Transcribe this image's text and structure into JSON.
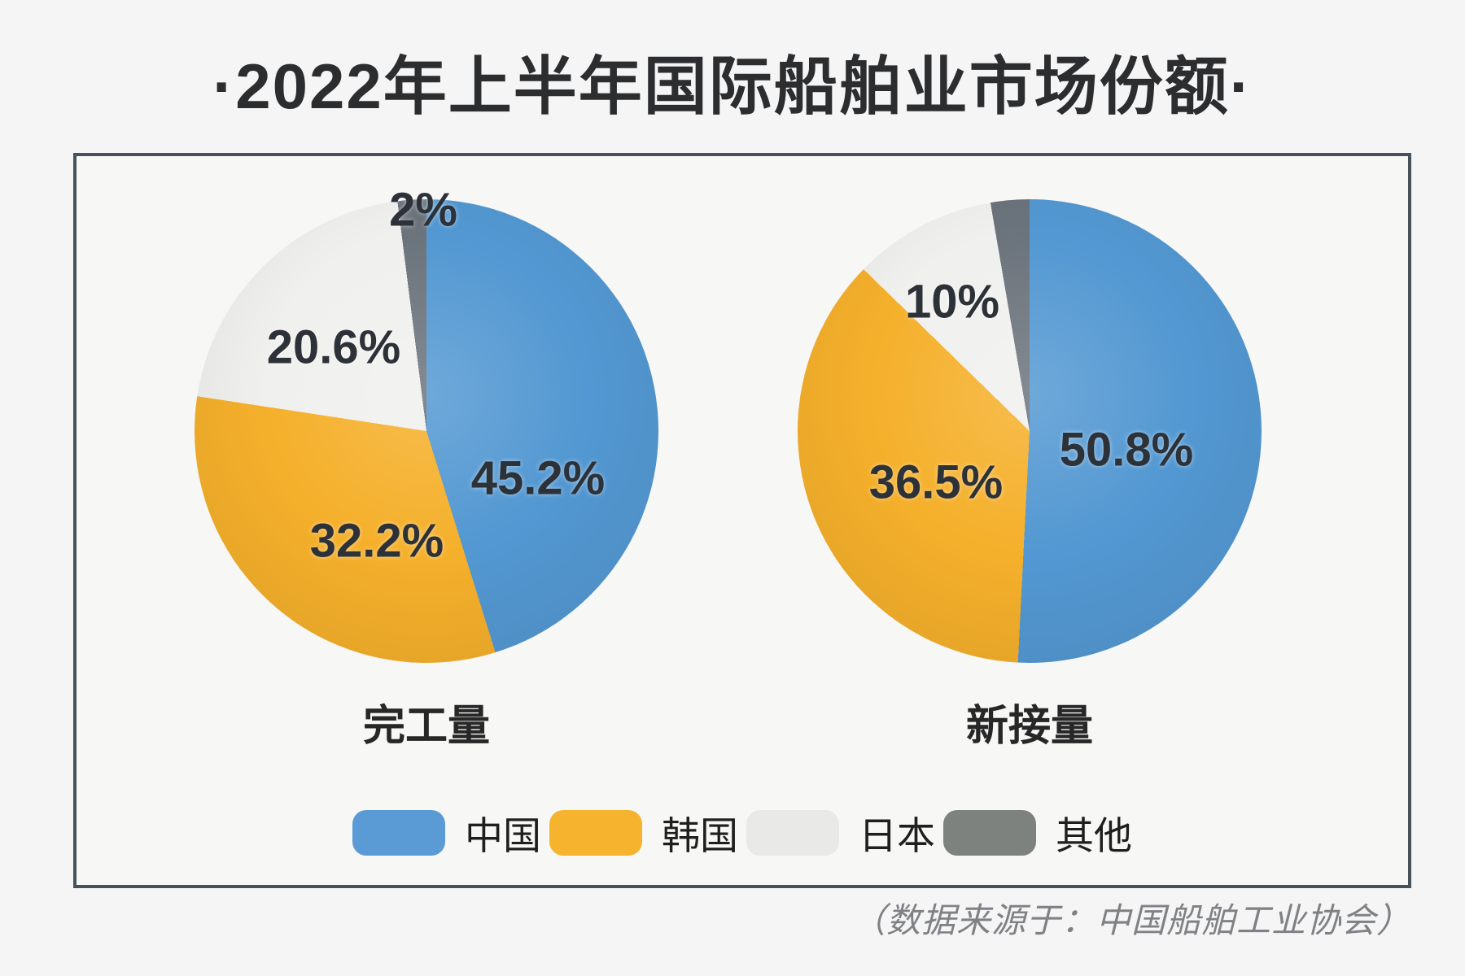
{
  "page": {
    "title": "·2022年上半年国际船舶业市场份额·",
    "source_note": "（数据来源于：中国船舶工业协会）",
    "background": "#f5f5f6",
    "panel_border_color": "#47525b"
  },
  "legend": {
    "items": [
      {
        "label": "中国",
        "color": "#5b9bd5"
      },
      {
        "label": "韩国",
        "color": "#f6b32d"
      },
      {
        "label": "日本",
        "color": "#e9e9e7"
      },
      {
        "label": "其他",
        "color": "#7d827e"
      }
    ]
  },
  "chart_data": [
    {
      "type": "pie",
      "title": "完工量",
      "categories": [
        "中国",
        "韩国",
        "日本",
        "其他"
      ],
      "values": [
        45.2,
        32.2,
        20.6,
        2.0
      ],
      "slice_labels": [
        "45.2%",
        "32.2%",
        "20.6%",
        "2%"
      ],
      "colors": [
        "#5398d2",
        "#f5b02b",
        "#f0f0ee",
        "#6b737c"
      ],
      "start_angle_deg": 0,
      "direction": "clockwise",
      "legend_position": "bottom"
    },
    {
      "type": "pie",
      "title": "新接量",
      "categories": [
        "中国",
        "韩国",
        "日本",
        "其他"
      ],
      "values": [
        50.8,
        36.5,
        10.0,
        2.7
      ],
      "slice_labels": [
        "50.8%",
        "36.5%",
        "10%",
        ""
      ],
      "colors": [
        "#5398d2",
        "#f5b02b",
        "#f0f0ee",
        "#6b737c"
      ],
      "start_angle_deg": 0,
      "direction": "clockwise",
      "legend_position": "bottom"
    }
  ]
}
